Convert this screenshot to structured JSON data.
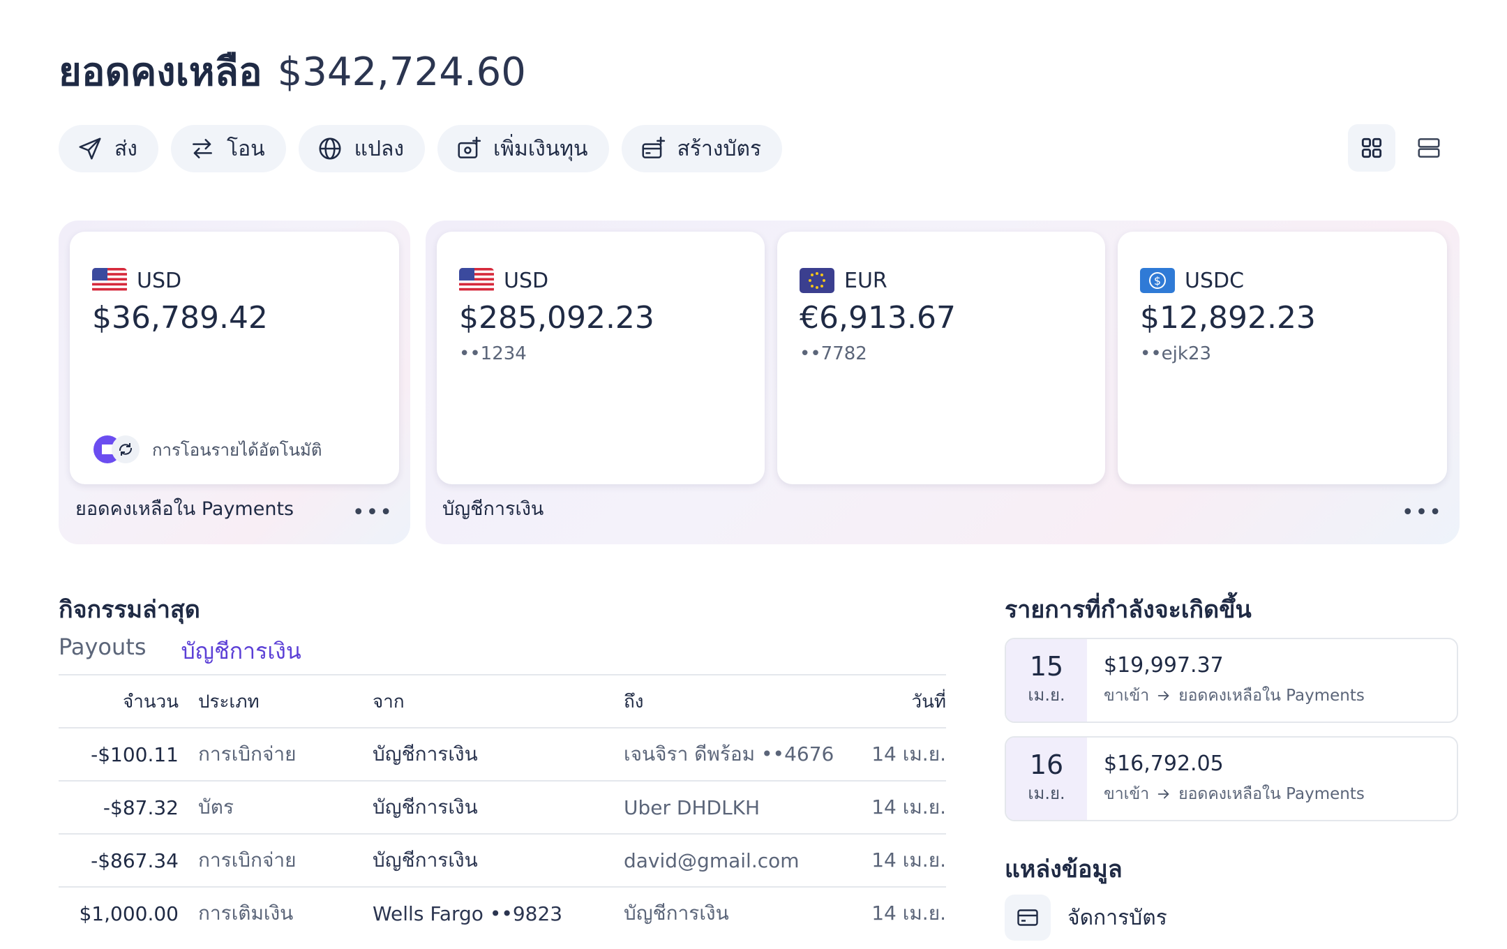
{
  "header": {
    "title": "ยอดคงเหลือ",
    "total": "$342,724.60"
  },
  "actions": [
    {
      "label": "ส่ง",
      "icon": "send-icon"
    },
    {
      "label": "โอน",
      "icon": "transfer-icon"
    },
    {
      "label": "แปลง",
      "icon": "globe-icon"
    },
    {
      "label": "เพิ่มเงินทุน",
      "icon": "add-funds-icon"
    },
    {
      "label": "สร้างบัตร",
      "icon": "create-card-icon"
    }
  ],
  "view_toggle": {
    "active": "grid"
  },
  "payments_panel": {
    "label": "ยอดคงเหลือใน Payments",
    "more": "•••",
    "card": {
      "currency": "USD",
      "balance": "$36,789.42",
      "auto_transfer": "การโอนรายได้อัตโนมัติ"
    }
  },
  "accounts_panel": {
    "label": "บัญชีการเงิน",
    "more": "•••",
    "cards": [
      {
        "currency": "USD",
        "balance": "$285,092.23",
        "account": "••1234",
        "icon": "us-flag-icon"
      },
      {
        "currency": "EUR",
        "balance": "€6,913.67",
        "account": "••7782",
        "icon": "eu-flag-icon"
      },
      {
        "currency": "USDC",
        "balance": "$12,892.23",
        "account": "••ejk23",
        "icon": "usdc-icon"
      }
    ]
  },
  "activity": {
    "title": "กิจกรรมล่าสุด",
    "tabs": [
      "Payouts",
      "บัญชีการเงิน"
    ],
    "active_tab": 1,
    "columns": {
      "amount": "จำนวน",
      "type": "ประเภท",
      "from": "จาก",
      "to": "ถึง",
      "date": "วันที่"
    },
    "rows": [
      {
        "amount": "-$100.11",
        "type": "การเบิกจ่าย",
        "from": "บัญชีการเงิน",
        "to": "เจนจิรา ดีพร้อม ••4676",
        "date": "14 เม.ย."
      },
      {
        "amount": "-$87.32",
        "type": "บัตร",
        "from": "บัญชีการเงิน",
        "to": "Uber DHDLKH",
        "date": "14 เม.ย."
      },
      {
        "amount": "-$867.34",
        "type": "การเบิกจ่าย",
        "from": "บัญชีการเงิน",
        "to": "david@gmail.com",
        "date": "14 เม.ย."
      },
      {
        "amount": "$1,000.00",
        "type": "การเติมเงิน",
        "from": "Wells Fargo ••9823",
        "to": "บัญชีการเงิน",
        "date": "14 เม.ย."
      }
    ]
  },
  "upcoming": {
    "title": "รายการที่กำลังจะเกิดขึ้น",
    "items": [
      {
        "day": "15",
        "month": "เม.ย.",
        "amount": "$19,997.37",
        "direction": "ขาเข้า",
        "target": "ยอดคงเหลือใน Payments"
      },
      {
        "day": "16",
        "month": "เม.ย.",
        "amount": "$16,792.05",
        "direction": "ขาเข้า",
        "target": "ยอดคงเหลือใน Payments"
      }
    ]
  },
  "resources": {
    "title": "แหล่งข้อมูล",
    "items": [
      {
        "label": "จัดการบัตร",
        "icon": "card-icon"
      }
    ]
  },
  "colors": {
    "accent": "#5b3fd6",
    "text": "#1f2a44",
    "muted": "#5b6579",
    "chip_bg": "#f1f4f9"
  }
}
